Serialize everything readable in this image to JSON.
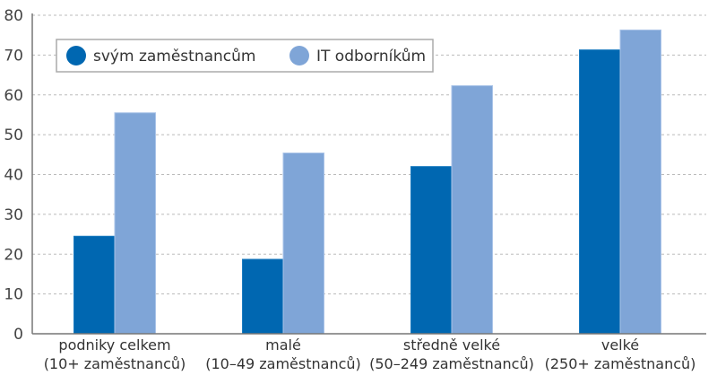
{
  "chart_data": {
    "type": "bar",
    "title": "",
    "xlabel": "",
    "ylabel": "",
    "ylim": [
      0,
      80
    ],
    "yticks": [
      0,
      10,
      20,
      30,
      40,
      50,
      60,
      70,
      80
    ],
    "grid": true,
    "legend_position": "top-left",
    "categories": [
      [
        "podniky celkem",
        "(10+ zaměstnanců)"
      ],
      [
        "malé",
        "(10–49 zaměstnanců)"
      ],
      [
        "středně velké",
        "(50–249 zaměstnanců)"
      ],
      [
        "velké",
        "(250+ zaměstnanců)"
      ]
    ],
    "series": [
      {
        "name": "svým zaměstnancům",
        "color": "#0067b1",
        "values": [
          24.5,
          18.7,
          42.0,
          71.3
        ]
      },
      {
        "name": "IT odborníkům",
        "color": "#7fa5d7",
        "values": [
          55.5,
          45.4,
          62.3,
          76.3
        ]
      }
    ]
  }
}
